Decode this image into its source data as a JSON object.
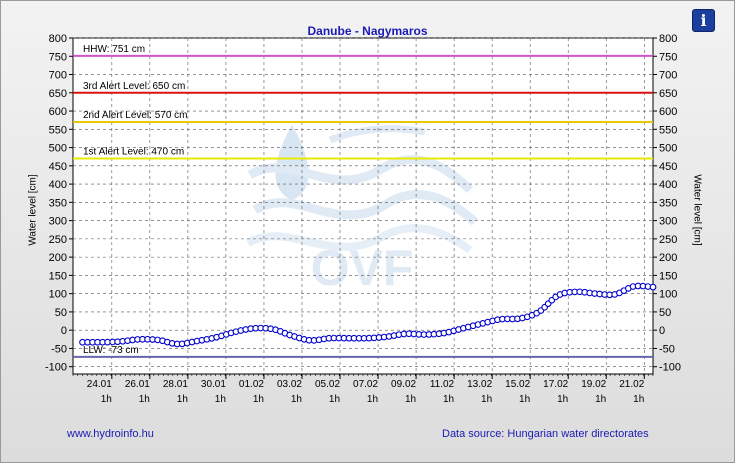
{
  "info_button": {
    "label": "i",
    "icon": "info-icon"
  },
  "footer": {
    "website": "www.hydroinfo.hu",
    "source": "Data source: Hungarian water directorates"
  },
  "chart_data": {
    "type": "line",
    "title": "Danube - Nagymaros",
    "ylabel": "Water level [cm]",
    "ylim": [
      -120,
      800
    ],
    "yticks": [
      -100,
      -50,
      0,
      50,
      100,
      150,
      200,
      250,
      300,
      350,
      400,
      450,
      500,
      550,
      600,
      650,
      700,
      750,
      800
    ],
    "xlim": [
      "2025-01-22T00:00",
      "2025-02-21T12:00"
    ],
    "xticks": [
      {
        "date": "24.01",
        "time": "1h",
        "at": "2025-01-24T01:00"
      },
      {
        "date": "26.01",
        "time": "1h",
        "at": "2025-01-26T01:00"
      },
      {
        "date": "28.01",
        "time": "1h",
        "at": "2025-01-28T01:00"
      },
      {
        "date": "30.01",
        "time": "1h",
        "at": "2025-01-30T01:00"
      },
      {
        "date": "01.02",
        "time": "1h",
        "at": "2025-02-01T01:00"
      },
      {
        "date": "03.02",
        "time": "1h",
        "at": "2025-02-03T01:00"
      },
      {
        "date": "05.02",
        "time": "1h",
        "at": "2025-02-05T01:00"
      },
      {
        "date": "07.02",
        "time": "1h",
        "at": "2025-02-07T01:00"
      },
      {
        "date": "09.02",
        "time": "1h",
        "at": "2025-02-09T01:00"
      },
      {
        "date": "11.02",
        "time": "1h",
        "at": "2025-02-11T01:00"
      },
      {
        "date": "13.02",
        "time": "1h",
        "at": "2025-02-13T01:00"
      },
      {
        "date": "15.02",
        "time": "1h",
        "at": "2025-02-15T01:00"
      },
      {
        "date": "17.02",
        "time": "1h",
        "at": "2025-02-17T01:00"
      },
      {
        "date": "19.02",
        "time": "1h",
        "at": "2025-02-19T01:00"
      },
      {
        "date": "21.02",
        "time": "1h",
        "at": "2025-02-21T01:00"
      }
    ],
    "grid": true,
    "levels": [
      {
        "label": "HHW: 751 cm",
        "value": 751,
        "color": "#cc55cc"
      },
      {
        "label": "3rd Alert Level: 650 cm",
        "value": 650,
        "color": "#dd1111"
      },
      {
        "label": "2nd Alert Level: 570 cm",
        "value": 570,
        "color": "#e8c800"
      },
      {
        "label": "1st Alert Level: 470 cm",
        "value": 470,
        "color": "#e8e800"
      },
      {
        "label": "LLW: -73 cm",
        "value": -73,
        "color": "#6666aa"
      }
    ],
    "series": [
      {
        "color": "#0000cc",
        "x": [
          "2025-01-22T12:00",
          "2025-01-23T12:00",
          "2025-01-24T12:00",
          "2025-01-25T12:00",
          "2025-01-26T12:00",
          "2025-01-27T12:00",
          "2025-01-28T12:00",
          "2025-01-29T12:00",
          "2025-01-30T12:00",
          "2025-01-31T12:00",
          "2025-02-01T12:00",
          "2025-02-02T12:00",
          "2025-02-03T12:00",
          "2025-02-04T12:00",
          "2025-02-05T12:00",
          "2025-02-06T12:00",
          "2025-02-07T12:00",
          "2025-02-08T12:00",
          "2025-02-09T12:00",
          "2025-02-10T12:00",
          "2025-02-11T12:00",
          "2025-02-12T12:00",
          "2025-02-13T12:00",
          "2025-02-14T12:00",
          "2025-02-15T12:00",
          "2025-02-16T12:00",
          "2025-02-17T12:00",
          "2025-02-18T12:00",
          "2025-02-19T12:00",
          "2025-02-20T12:00",
          "2025-02-21T12:00"
        ],
        "values": [
          -33,
          -33,
          -31,
          -25,
          -27,
          -38,
          -30,
          -20,
          -5,
          5,
          3,
          -15,
          -28,
          -22,
          -22,
          -22,
          -18,
          -10,
          -12,
          -8,
          5,
          18,
          30,
          32,
          50,
          95,
          105,
          100,
          98,
          120,
          118
        ]
      }
    ]
  }
}
